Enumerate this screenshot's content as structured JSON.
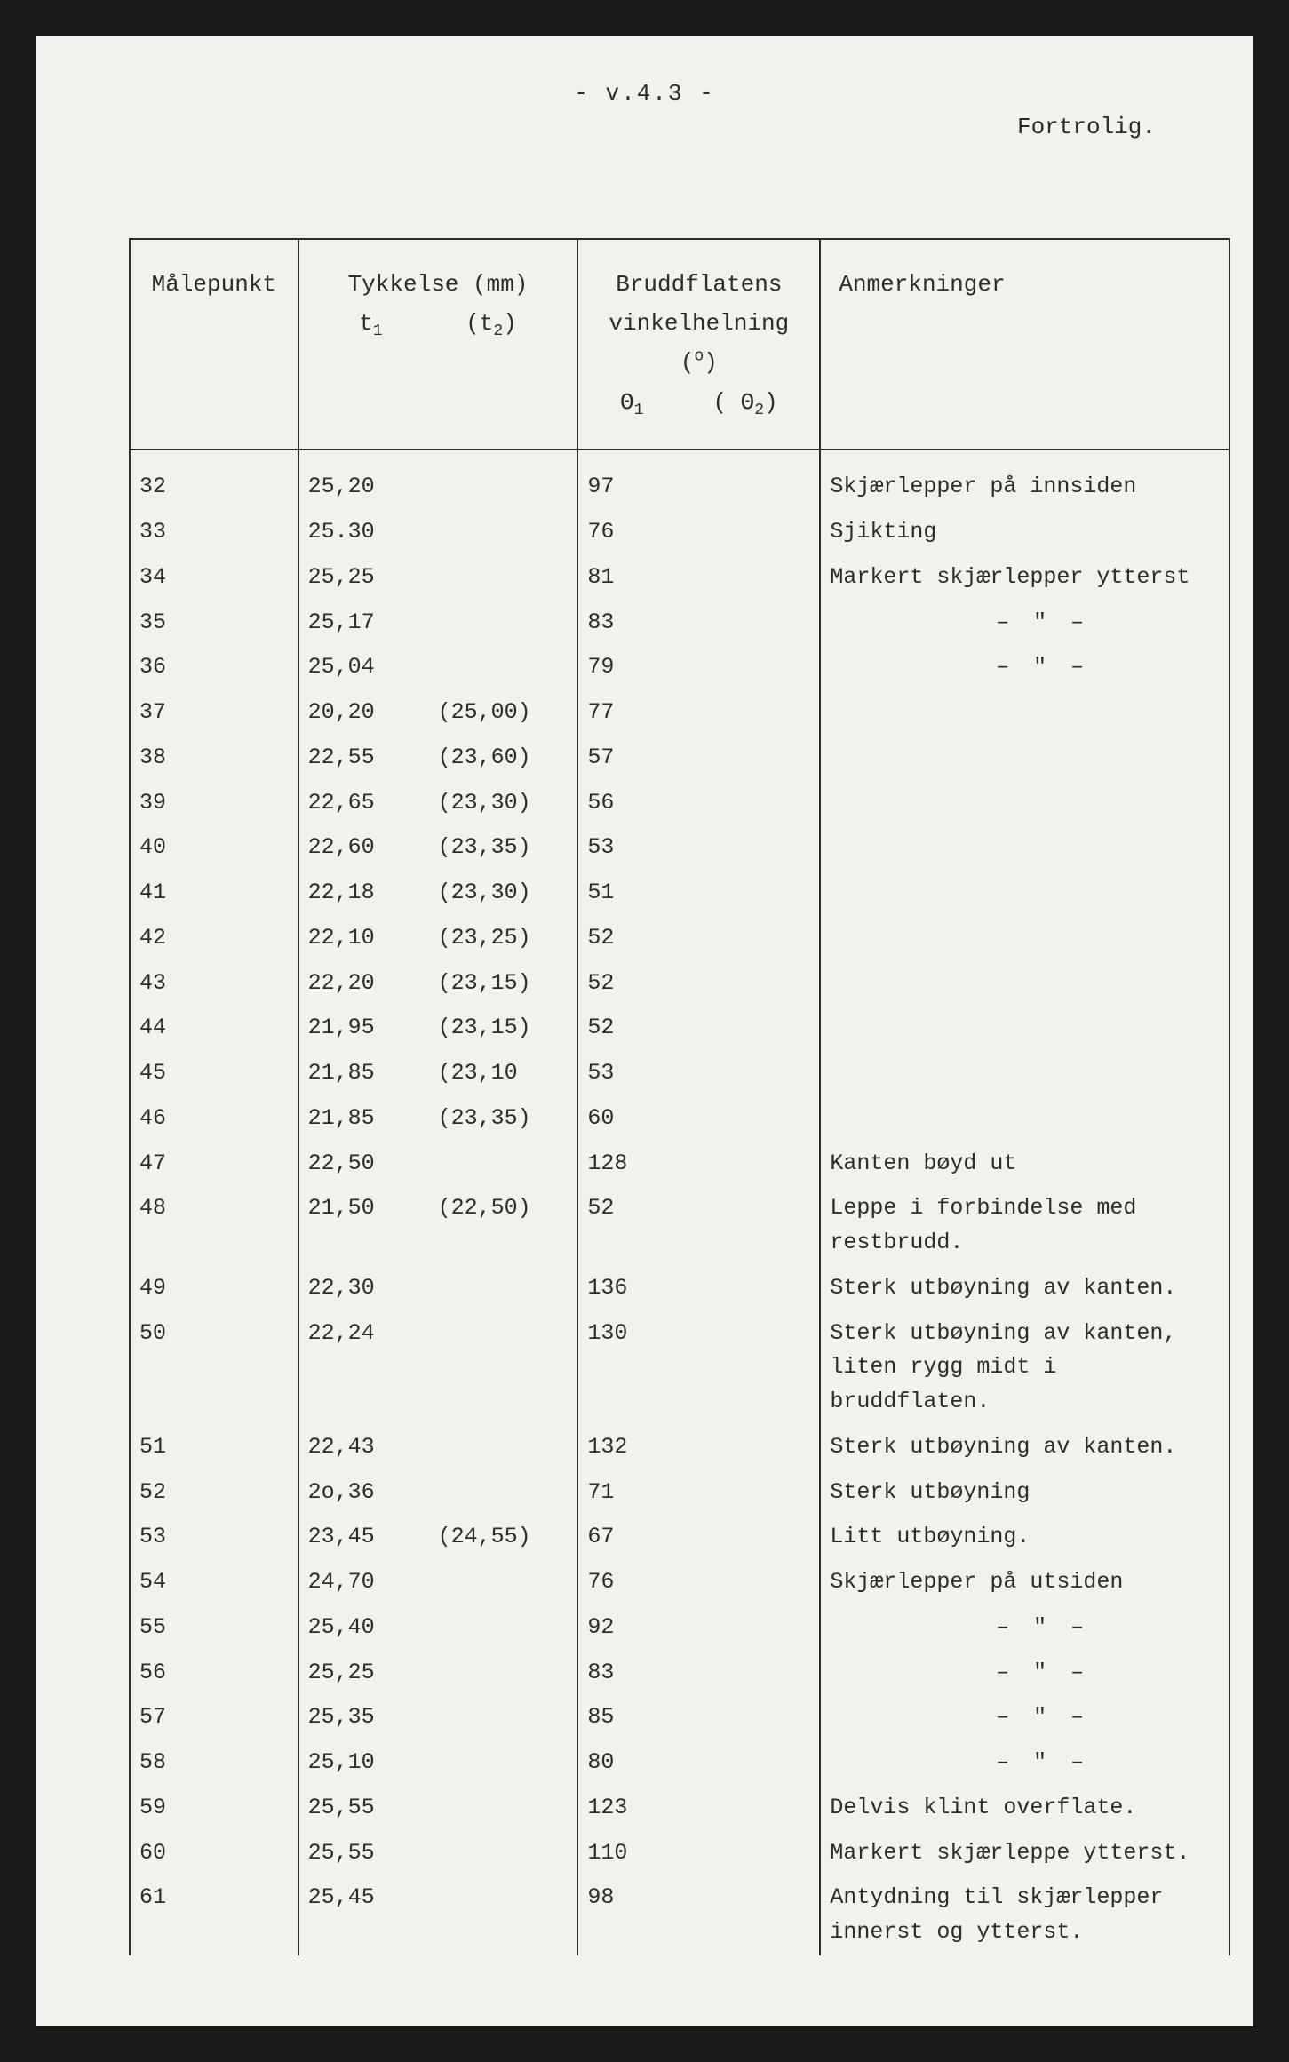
{
  "page_number_label": "- v.4.3 -",
  "confidential_label": "Fortrolig.",
  "headers": {
    "malepunkt": "Målepunkt",
    "tykkelse_title": "Tykkelse (mm)",
    "t1_label": "t",
    "t1_sub": "1",
    "t2_label": "(t",
    "t2_sub": "2",
    "t2_close": ")",
    "brudd_title": "Bruddflatens",
    "brudd_sub": "vinkelhelning (",
    "brudd_unit_sup": "o",
    "brudd_close": ")",
    "theta1": "Θ",
    "theta1_sub": "1",
    "theta2_open": "( Θ",
    "theta2_sub": "2",
    "theta2_close": ")",
    "anmerk": "Anmerkninger"
  },
  "ditto_mark": "–   \"   –",
  "rows": [
    {
      "mp": "32",
      "t1": "25,20",
      "t2": "",
      "th1": "97",
      "th2": "",
      "rem": "Skjærlepper på innsiden"
    },
    {
      "mp": "33",
      "t1": "25.30",
      "t2": "",
      "th1": "76",
      "th2": "",
      "rem": "Sjikting"
    },
    {
      "mp": "34",
      "t1": "25,25",
      "t2": "",
      "th1": "81",
      "th2": "",
      "rem": "Markert skjærlepper ytterst"
    },
    {
      "mp": "35",
      "t1": "25,17",
      "t2": "",
      "th1": "83",
      "th2": "",
      "rem": "__DITTO__"
    },
    {
      "mp": "36",
      "t1": "25,04",
      "t2": "",
      "th1": "79",
      "th2": "",
      "rem": "__DITTO__"
    },
    {
      "mp": "37",
      "t1": "20,20",
      "t2": "(25,00)",
      "th1": "77",
      "th2": "",
      "rem": ""
    },
    {
      "mp": "38",
      "t1": "22,55",
      "t2": "(23,60)",
      "th1": "57",
      "th2": "",
      "rem": ""
    },
    {
      "mp": "39",
      "t1": "22,65",
      "t2": "(23,30)",
      "th1": "56",
      "th2": "",
      "rem": ""
    },
    {
      "mp": "40",
      "t1": "22,60",
      "t2": "(23,35)",
      "th1": "53",
      "th2": "",
      "rem": ""
    },
    {
      "mp": "41",
      "t1": "22,18",
      "t2": "(23,30)",
      "th1": "51",
      "th2": "",
      "rem": ""
    },
    {
      "mp": "42",
      "t1": "22,10",
      "t2": "(23,25)",
      "th1": "52",
      "th2": "",
      "rem": ""
    },
    {
      "mp": "43",
      "t1": "22,20",
      "t2": "(23,15)",
      "th1": "52",
      "th2": "",
      "rem": ""
    },
    {
      "mp": "44",
      "t1": "21,95",
      "t2": "(23,15)",
      "th1": "52",
      "th2": "",
      "rem": ""
    },
    {
      "mp": "45",
      "t1": "21,85",
      "t2": "(23,10",
      "th1": "53",
      "th2": "",
      "rem": ""
    },
    {
      "mp": "46",
      "t1": "21,85",
      "t2": "(23,35)",
      "th1": "60",
      "th2": "",
      "rem": ""
    },
    {
      "mp": "47",
      "t1": "22,50",
      "t2": "",
      "th1": "128",
      "th2": "",
      "rem": "Kanten bøyd ut"
    },
    {
      "mp": "48",
      "t1": "21,50",
      "t2": "(22,50)",
      "th1": "52",
      "th2": "",
      "rem": "Leppe i forbindelse med restbrudd."
    },
    {
      "mp": "49",
      "t1": "22,30",
      "t2": "",
      "th1": "136",
      "th2": "",
      "rem": "Sterk utbøyning av kanten."
    },
    {
      "mp": "50",
      "t1": "22,24",
      "t2": "",
      "th1": "130",
      "th2": "",
      "rem": "Sterk utbøyning av kanten, liten rygg midt i bruddflaten."
    },
    {
      "mp": "51",
      "t1": "22,43",
      "t2": "",
      "th1": "132",
      "th2": "",
      "rem": "Sterk utbøyning av kanten."
    },
    {
      "mp": "52",
      "t1": "2o,36",
      "t2": "",
      "th1": "71",
      "th2": "",
      "rem": "Sterk utbøyning"
    },
    {
      "mp": "53",
      "t1": "23,45",
      "t2": "(24,55)",
      "th1": "67",
      "th2": "",
      "rem": "Litt utbøyning."
    },
    {
      "mp": "54",
      "t1": "24,70",
      "t2": "",
      "th1": "76",
      "th2": "",
      "rem": "Skjærlepper på utsiden"
    },
    {
      "mp": "55",
      "t1": "25,40",
      "t2": "",
      "th1": "92",
      "th2": "",
      "rem": "__DITTO__"
    },
    {
      "mp": "56",
      "t1": "25,25",
      "t2": "",
      "th1": "83",
      "th2": "",
      "rem": "__DITTO__"
    },
    {
      "mp": "57",
      "t1": "25,35",
      "t2": "",
      "th1": "85",
      "th2": "",
      "rem": "__DITTO__"
    },
    {
      "mp": "58",
      "t1": "25,10",
      "t2": "",
      "th1": "80",
      "th2": "",
      "rem": "__DITTO__"
    },
    {
      "mp": "59",
      "t1": "25,55",
      "t2": "",
      "th1": "123",
      "th2": "",
      "rem": "Delvis klint overflate."
    },
    {
      "mp": "60",
      "t1": "25,55",
      "t2": "",
      "th1": "110",
      "th2": "",
      "rem": "Markert skjærleppe ytterst."
    },
    {
      "mp": "61",
      "t1": "25,45",
      "t2": "",
      "th1": "98",
      "th2": "",
      "rem": "Antydning til skjærlepper innerst og ytterst."
    }
  ]
}
